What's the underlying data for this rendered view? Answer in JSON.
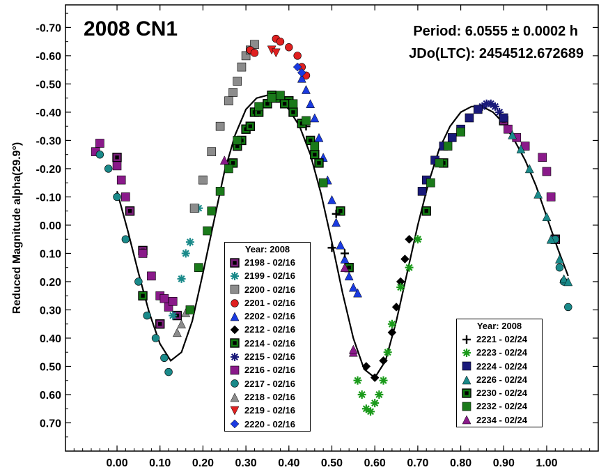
{
  "chart_data": {
    "type": "scatter",
    "title": "2008 CN1",
    "annotations": [
      "Period: 6.0555 ± 0.0002 h",
      "JDo(LTC): 2454512.672689"
    ],
    "xlabel": "",
    "ylabel": "Reduced Magnitude alpha(29.9°)",
    "xlim": [
      -0.12,
      1.12
    ],
    "ylim": [
      0.8,
      -0.78
    ],
    "y_inverted": true,
    "x_ticks": [
      "0.00",
      "0.10",
      "0.20",
      "0.30",
      "0.40",
      "0.50",
      "0.60",
      "0.70",
      "0.80",
      "0.90",
      "1.00"
    ],
    "y_ticks": [
      "-0.70",
      "-0.60",
      "-0.50",
      "-0.40",
      "-0.30",
      "-0.20",
      "-0.10",
      "0.00",
      "0.10",
      "0.20",
      "0.30",
      "0.40",
      "0.50",
      "0.60",
      "0.70"
    ],
    "legend_left": {
      "title": "Year: 2008",
      "entries": [
        {
          "label": "2198 - 02/16",
          "marker": "square-open",
          "color": "#7a1f7a"
        },
        {
          "label": "2199 - 02/16",
          "marker": "asterisk",
          "color": "#1a8a8a"
        },
        {
          "label": "2200 - 02/16",
          "marker": "square",
          "color": "#8c8c8c"
        },
        {
          "label": "2201 - 02/16",
          "marker": "circle",
          "color": "#e02020"
        },
        {
          "label": "2202 - 02/16",
          "marker": "triangle",
          "color": "#1a3ae0"
        },
        {
          "label": "2212 - 02/16",
          "marker": "diamond",
          "color": "#000000"
        },
        {
          "label": "2214 - 02/16",
          "marker": "square-open",
          "color": "#117a11"
        },
        {
          "label": "2215 - 02/16",
          "marker": "asterisk",
          "color": "#1a1a7a"
        },
        {
          "label": "2216 - 02/16",
          "marker": "square",
          "color": "#8a1a8a"
        },
        {
          "label": "2217 - 02/16",
          "marker": "circle",
          "color": "#1a8a8a"
        },
        {
          "label": "2218 - 02/16",
          "marker": "triangle",
          "color": "#8c8c8c"
        },
        {
          "label": "2219 - 02/16",
          "marker": "triangle-down",
          "color": "#e02020"
        },
        {
          "label": "2220 - 02/16",
          "marker": "diamond",
          "color": "#1a3ae0"
        }
      ]
    },
    "legend_right": {
      "title": "Year: 2008",
      "entries": [
        {
          "label": "2221 - 02/24",
          "marker": "plus",
          "color": "#000000"
        },
        {
          "label": "2223 - 02/24",
          "marker": "asterisk",
          "color": "#1a9a1a"
        },
        {
          "label": "2224 - 02/24",
          "marker": "square",
          "color": "#1a1a7a"
        },
        {
          "label": "2226 - 02/24",
          "marker": "triangle",
          "color": "#1a8a8a"
        },
        {
          "label": "2230 - 02/24",
          "marker": "square-open",
          "color": "#117a11"
        },
        {
          "label": "2232 - 02/24",
          "marker": "square",
          "color": "#1a7a1a"
        },
        {
          "label": "2234 - 02/24",
          "marker": "triangle",
          "color": "#8a1a8a"
        }
      ]
    },
    "fit_curve": {
      "x": [
        0.0,
        0.025,
        0.05,
        0.075,
        0.1,
        0.125,
        0.15,
        0.175,
        0.2,
        0.225,
        0.25,
        0.275,
        0.3,
        0.325,
        0.35,
        0.375,
        0.4,
        0.425,
        0.45,
        0.475,
        0.5,
        0.525,
        0.55,
        0.575,
        0.6,
        0.625,
        0.65,
        0.675,
        0.7,
        0.725,
        0.75,
        0.775,
        0.8,
        0.825,
        0.85,
        0.875,
        0.9,
        0.925,
        0.95,
        0.975,
        1.0,
        1.025,
        1.05
      ],
      "y": [
        -0.12,
        0.02,
        0.17,
        0.31,
        0.42,
        0.48,
        0.45,
        0.34,
        0.17,
        -0.01,
        -0.19,
        -0.32,
        -0.41,
        -0.45,
        -0.46,
        -0.45,
        -0.41,
        -0.35,
        -0.25,
        -0.11,
        0.06,
        0.24,
        0.4,
        0.51,
        0.54,
        0.48,
        0.34,
        0.17,
        0.0,
        -0.15,
        -0.27,
        -0.35,
        -0.4,
        -0.42,
        -0.42,
        -0.4,
        -0.36,
        -0.3,
        -0.23,
        -0.14,
        -0.03,
        0.08,
        0.18
      ]
    },
    "series": [
      {
        "name": "2198 - 02/16",
        "marker": "square-open",
        "color": "#7a1f7a",
        "x": [
          0.0,
          0.03,
          0.06,
          0.1,
          0.14,
          0.9,
          1.02
        ],
        "y": [
          -0.24,
          -0.05,
          0.09,
          0.35,
          0.32,
          -0.37,
          0.05
        ]
      },
      {
        "name": "2199 - 02/16",
        "marker": "asterisk",
        "color": "#1a8a8a",
        "x": [
          0.13,
          0.15,
          0.16,
          0.17,
          0.19
        ],
        "y": [
          0.32,
          0.19,
          0.1,
          0.06,
          -0.06
        ]
      },
      {
        "name": "2200 - 02/16",
        "marker": "square",
        "color": "#8c8c8c",
        "x": [
          0.18,
          0.2,
          0.22,
          0.24,
          0.26,
          0.27,
          0.28,
          0.29,
          0.3,
          0.31,
          0.32
        ],
        "y": [
          -0.06,
          -0.16,
          -0.26,
          -0.35,
          -0.44,
          -0.47,
          -0.51,
          -0.56,
          -0.6,
          -0.62,
          -0.64
        ]
      },
      {
        "name": "2201 - 02/16",
        "marker": "circle",
        "color": "#e02020",
        "x": [
          0.31,
          0.32,
          0.37,
          0.38,
          0.4,
          0.42,
          0.43,
          0.44
        ],
        "y": [
          -0.62,
          -0.61,
          -0.66,
          -0.65,
          -0.63,
          -0.6,
          -0.56,
          -0.53
        ]
      },
      {
        "name": "2202 - 02/16",
        "marker": "triangle",
        "color": "#1a3ae0",
        "x": [
          0.43,
          0.44,
          0.45,
          0.46,
          0.47,
          0.48,
          0.49,
          0.5,
          0.51,
          0.52,
          0.53,
          0.54,
          0.55,
          0.56
        ],
        "y": [
          -0.52,
          -0.48,
          -0.43,
          -0.38,
          -0.31,
          -0.24,
          -0.16,
          -0.09,
          -0.01,
          0.07,
          0.12,
          0.18,
          0.22,
          0.24
        ]
      },
      {
        "name": "2212 - 02/16",
        "marker": "diamond",
        "color": "#000000",
        "x": [
          0.58,
          0.6,
          0.62,
          0.64,
          0.65,
          0.66,
          0.67,
          0.68
        ],
        "y": [
          0.5,
          0.54,
          0.48,
          0.38,
          0.29,
          0.2,
          0.12,
          0.05
        ]
      },
      {
        "name": "2214 - 02/16",
        "marker": "square-open",
        "color": "#117a11",
        "x": [
          0.06,
          0.28,
          0.3,
          0.32,
          0.36,
          0.4,
          0.46,
          0.52,
          0.54,
          0.72,
          0.76
        ],
        "y": [
          0.25,
          -0.28,
          -0.34,
          -0.4,
          -0.46,
          -0.44,
          -0.25,
          -0.05,
          0.15,
          -0.05,
          -0.22
        ]
      },
      {
        "name": "2215 - 02/16",
        "marker": "asterisk",
        "color": "#1a1a7a",
        "x": [
          0.84,
          0.85,
          0.86,
          0.87,
          0.88,
          0.89
        ],
        "y": [
          -0.41,
          -0.42,
          -0.43,
          -0.43,
          -0.42,
          -0.4
        ]
      },
      {
        "name": "2216 - 02/16",
        "marker": "square",
        "color": "#8a1a8a",
        "x": [
          -0.05,
          -0.04,
          0.0,
          0.01,
          0.02,
          0.06,
          0.08,
          0.1,
          0.11,
          0.12,
          0.13,
          0.91,
          0.93,
          0.95,
          0.99,
          1.0,
          1.01
        ],
        "y": [
          -0.26,
          -0.29,
          -0.21,
          -0.16,
          -0.1,
          0.1,
          0.18,
          0.25,
          0.26,
          0.29,
          0.27,
          -0.34,
          -0.31,
          -0.28,
          -0.24,
          -0.19,
          -0.1
        ]
      },
      {
        "name": "2217 - 02/16",
        "marker": "circle",
        "color": "#1a8a8a",
        "x": [
          -0.04,
          -0.02,
          0.0,
          0.02,
          0.05,
          0.07,
          0.09,
          0.11,
          0.12,
          1.02,
          1.03,
          1.04,
          1.05
        ],
        "y": [
          -0.25,
          -0.2,
          -0.1,
          0.05,
          0.2,
          0.32,
          0.4,
          0.47,
          0.52,
          0.05,
          0.15,
          0.2,
          0.29
        ]
      },
      {
        "name": "2218 - 02/16",
        "marker": "triangle",
        "color": "#8c8c8c",
        "x": [
          0.14,
          0.15,
          0.16
        ],
        "y": [
          0.38,
          0.35,
          0.31
        ]
      },
      {
        "name": "2219 - 02/16",
        "marker": "triangle-down",
        "color": "#e02020",
        "x": [
          0.36,
          0.37
        ],
        "y": [
          -0.62,
          -0.61
        ]
      },
      {
        "name": "2220 - 02/16",
        "marker": "diamond",
        "color": "#1a3ae0",
        "x": [
          0.42,
          0.43
        ],
        "y": [
          -0.56,
          -0.54
        ]
      },
      {
        "name": "2221 - 02/24",
        "marker": "plus",
        "color": "#000000",
        "x": [
          0.44,
          0.47,
          0.5,
          0.51,
          0.53
        ],
        "y": [
          -0.35,
          -0.22,
          0.08,
          -0.04,
          0.1
        ]
      },
      {
        "name": "2223 - 02/24",
        "marker": "asterisk",
        "color": "#1a9a1a",
        "x": [
          0.56,
          0.57,
          0.58,
          0.59,
          0.6,
          0.61,
          0.62,
          0.63,
          0.64,
          0.66,
          0.68,
          0.7
        ],
        "y": [
          0.55,
          0.6,
          0.65,
          0.66,
          0.63,
          0.6,
          0.55,
          0.45,
          0.35,
          0.22,
          0.15,
          0.05
        ]
      },
      {
        "name": "2224 - 02/24",
        "marker": "square",
        "color": "#1a1a7a",
        "x": [
          0.71,
          0.72,
          0.74,
          0.76,
          0.78,
          0.8,
          0.82,
          0.84,
          0.9
        ],
        "y": [
          -0.12,
          -0.16,
          -0.23,
          -0.28,
          -0.31,
          -0.34,
          -0.38,
          -0.41,
          -0.38
        ]
      },
      {
        "name": "2226 - 02/24",
        "marker": "triangle",
        "color": "#1a8a8a",
        "x": [
          0.92,
          0.94,
          0.96,
          0.98,
          1.0,
          1.01,
          1.03,
          1.04,
          1.05
        ],
        "y": [
          -0.32,
          -0.27,
          -0.2,
          -0.11,
          -0.03,
          0.05,
          0.12,
          0.19,
          0.2
        ]
      },
      {
        "name": "2230 - 02/24",
        "marker": "square-open",
        "color": "#117a11",
        "x": [
          0.27,
          0.29,
          0.31,
          0.33,
          0.35,
          0.37,
          0.39,
          0.41,
          0.43,
          0.45,
          0.47
        ],
        "y": [
          -0.22,
          -0.3,
          -0.35,
          -0.4,
          -0.43,
          -0.45,
          -0.43,
          -0.4,
          -0.36,
          -0.3,
          -0.22
        ]
      },
      {
        "name": "2232 - 02/24",
        "marker": "square",
        "color": "#1a7a1a",
        "x": [
          0.17,
          0.19,
          0.21,
          0.22,
          0.24,
          0.26,
          0.28,
          0.33,
          0.36,
          0.38,
          0.41,
          0.44,
          0.46,
          0.48,
          0.73,
          0.75,
          0.77,
          0.8
        ],
        "y": [
          0.3,
          0.15,
          0.02,
          -0.05,
          -0.12,
          -0.2,
          -0.3,
          -0.42,
          -0.45,
          -0.46,
          -0.43,
          -0.37,
          -0.28,
          -0.15,
          -0.15,
          -0.22,
          -0.28,
          -0.33
        ]
      },
      {
        "name": "2234 - 02/24",
        "marker": "triangle",
        "color": "#8a1a8a",
        "x": [
          0.25,
          0.53,
          0.55,
          0.55
        ],
        "y": [
          -0.23,
          0.15,
          0.45,
          0.44
        ]
      }
    ]
  }
}
